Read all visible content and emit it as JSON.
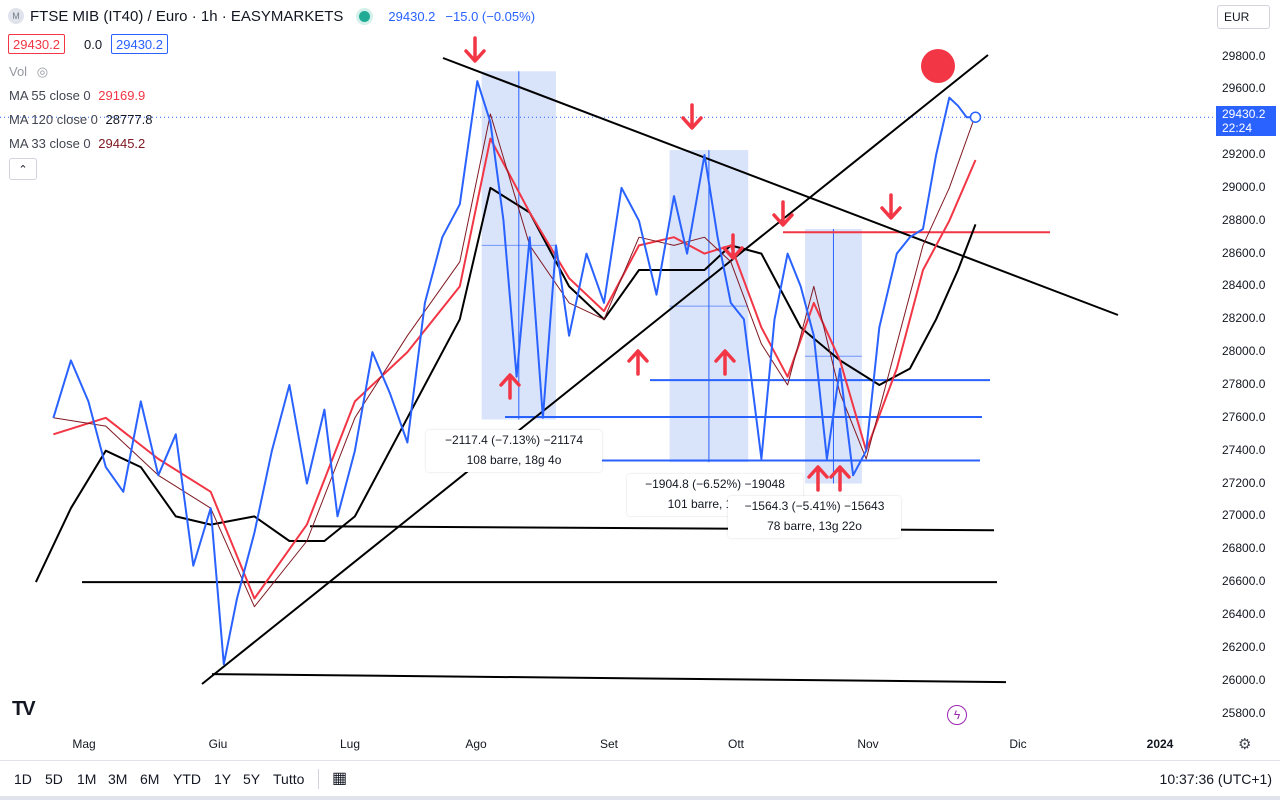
{
  "header": {
    "symbol_title": "FTSE MIB (IT40) / Euro · 1h · EASYMARKETS",
    "last_price": "29430.2",
    "change": "−15.0 (−0.05%)",
    "bid": "29430.2",
    "spread": "0.0",
    "ask": "29430.2"
  },
  "legend": {
    "vol_label": "Vol",
    "ma55_label": "MA 55 close 0",
    "ma55_value": "29169.9",
    "ma120_label": "MA 120 close 0",
    "ma120_value": "28777.8",
    "ma33_label": "MA 33 close 0",
    "ma33_value": "29445.2",
    "collapse_glyph": "⌃"
  },
  "currency": "EUR",
  "last_price_tag": {
    "price": "29430.2",
    "countdown": "22:24"
  },
  "measures": [
    {
      "line1": "−2117.4 (−7.13%) −21174",
      "line2": "108 barre, 18g 4o"
    },
    {
      "line1": "−1904.8 (−6.52%) −19048",
      "line2": "101 barre, 17g 5o"
    },
    {
      "line1": "−1564.3 (−5.41%) −15643",
      "line2": "78 barre, 13g 22o"
    }
  ],
  "timeframes": [
    "1D",
    "5D",
    "1M",
    "3M",
    "6M",
    "YTD",
    "1Y",
    "5Y",
    "Tutto"
  ],
  "clock": "10:37:36 (UTC+1)",
  "colors": {
    "price_line": "#2962ff",
    "ma55": "#f23645",
    "ma33": "#801922",
    "ma120": "#000000",
    "rect_fill": "#c9d7f8",
    "arrow": "#f23645"
  },
  "chart_data": {
    "type": "line",
    "title": "FTSE MIB (IT40) / Euro · 1h · EASYMARKETS",
    "xlabel": "",
    "ylabel": "",
    "x_ticks": [
      "Mag",
      "Giu",
      "Lug",
      "Ago",
      "Set",
      "Ott",
      "Nov",
      "Dic",
      "2024"
    ],
    "y_ticks": [
      25800,
      26000,
      26200,
      26400,
      26600,
      26800,
      27000,
      27200,
      27400,
      27600,
      27800,
      28000,
      28200,
      28400,
      28600,
      28800,
      29000,
      29200,
      29400,
      29600,
      29800
    ],
    "ylim": [
      25700,
      29950
    ],
    "grid": false,
    "series": [
      {
        "name": "FTSE MIB (IT40)",
        "x": [
          "Apr 24",
          "Apr 28",
          "May 2",
          "May 6",
          "May 10",
          "May 14",
          "May 18",
          "May 22",
          "May 26",
          "May 30",
          "Jun 2",
          "Jun 5",
          "Jun 9",
          "Jun 13",
          "Jun 17",
          "Jun 21",
          "Jun 25",
          "Jun 28",
          "Jul 2",
          "Jul 6",
          "Jul 10",
          "Jul 14",
          "Jul 18",
          "Jul 22",
          "Jul 26",
          "Jul 30",
          "Aug 2",
          "Aug 5",
          "Aug 8",
          "Aug 11",
          "Aug 14",
          "Aug 17",
          "Aug 20",
          "Aug 24",
          "Aug 28",
          "Sep 1",
          "Sep 5",
          "Sep 9",
          "Sep 13",
          "Sep 16",
          "Sep 20",
          "Sep 23",
          "Sep 26",
          "Sep 29",
          "Oct 3",
          "Oct 6",
          "Oct 9",
          "Oct 12",
          "Oct 15",
          "Oct 18",
          "Oct 21",
          "Oct 24",
          "Oct 27",
          "Oct 30",
          "Nov 3",
          "Nov 6",
          "Nov 9",
          "Nov 12",
          "Nov 15",
          "Nov 17",
          "Nov 19",
          "Nov 21"
        ],
        "values": [
          27600,
          27950,
          27700,
          27300,
          27150,
          27700,
          27250,
          27500,
          26700,
          27050,
          26100,
          26500,
          26900,
          27400,
          27800,
          27200,
          27650,
          27000,
          27400,
          28000,
          27750,
          27450,
          28300,
          28700,
          28900,
          29650,
          29400,
          28800,
          27850,
          28700,
          27600,
          28650,
          28100,
          28600,
          28300,
          29000,
          28800,
          28350,
          28950,
          28600,
          29200,
          28700,
          28300,
          28200,
          27350,
          28200,
          28600,
          28400,
          28100,
          27350,
          27900,
          27250,
          27400,
          28150,
          28600,
          28700,
          28750,
          29200,
          29550,
          29500,
          29430,
          29430
        ]
      },
      {
        "name": "MA 55",
        "x": [
          "Apr 24",
          "May 6",
          "May 18",
          "May 30",
          "Jun 9",
          "Jun 21",
          "Jul 2",
          "Jul 14",
          "Jul 26",
          "Aug 2",
          "Aug 11",
          "Aug 20",
          "Aug 28",
          "Sep 5",
          "Sep 13",
          "Sep 20",
          "Sep 26",
          "Oct 3",
          "Oct 9",
          "Oct 15",
          "Oct 21",
          "Oct 27",
          "Nov 3",
          "Nov 9",
          "Nov 15",
          "Nov 21"
        ],
        "values": [
          27500,
          27600,
          27350,
          27150,
          26500,
          26950,
          27700,
          28000,
          28400,
          29300,
          28850,
          28450,
          28250,
          28650,
          28700,
          28600,
          28650,
          28150,
          27850,
          28300,
          27950,
          27400,
          27900,
          28500,
          28800,
          29170
        ]
      },
      {
        "name": "MA 33",
        "x": [
          "Apr 24",
          "May 6",
          "May 18",
          "May 30",
          "Jun 9",
          "Jun 21",
          "Jul 2",
          "Jul 14",
          "Jul 26",
          "Aug 2",
          "Aug 11",
          "Aug 20",
          "Aug 28",
          "Sep 5",
          "Sep 13",
          "Sep 20",
          "Sep 26",
          "Oct 3",
          "Oct 9",
          "Oct 15",
          "Oct 21",
          "Oct 27",
          "Nov 3",
          "Nov 9",
          "Nov 15",
          "Nov 21"
        ],
        "values": [
          27600,
          27550,
          27250,
          27050,
          26450,
          26850,
          27600,
          28100,
          28550,
          29450,
          28650,
          28300,
          28200,
          28700,
          28650,
          28700,
          28550,
          28050,
          27800,
          28400,
          27750,
          27350,
          28050,
          28650,
          29000,
          29445
        ]
      },
      {
        "name": "MA 120",
        "x": [
          "Apr 20",
          "Apr 28",
          "May 6",
          "May 14",
          "May 22",
          "May 30",
          "Jun 9",
          "Jun 17",
          "Jun 25",
          "Jul 2",
          "Jul 14",
          "Jul 26",
          "Aug 2",
          "Aug 11",
          "Aug 20",
          "Aug 28",
          "Sep 5",
          "Sep 13",
          "Sep 20",
          "Sep 26",
          "Oct 3",
          "Oct 12",
          "Oct 21",
          "Oct 30",
          "Nov 6",
          "Nov 12",
          "Nov 17",
          "Nov 21"
        ],
        "values": [
          26600,
          27050,
          27400,
          27300,
          27000,
          26950,
          27000,
          26850,
          26850,
          27000,
          27600,
          28200,
          29000,
          28850,
          28400,
          28200,
          28500,
          28500,
          28500,
          28650,
          28600,
          28150,
          27950,
          27800,
          27900,
          28200,
          28500,
          28778
        ]
      }
    ],
    "annotations": {
      "price_rectangles": [
        {
          "x_start": "Jul 31",
          "x_end": "Aug 17",
          "top": 29710,
          "bottom": 27590
        },
        {
          "x_start": "Sep 12",
          "x_end": "Sep 30",
          "top": 29230,
          "bottom": 27330
        },
        {
          "x_start": "Oct 13",
          "x_end": "Oct 26",
          "top": 28750,
          "bottom": 27200
        }
      ],
      "horizontal_levels": [
        27830,
        27605,
        27340,
        26940,
        26600,
        26040
      ],
      "red_level": 28730
    }
  }
}
